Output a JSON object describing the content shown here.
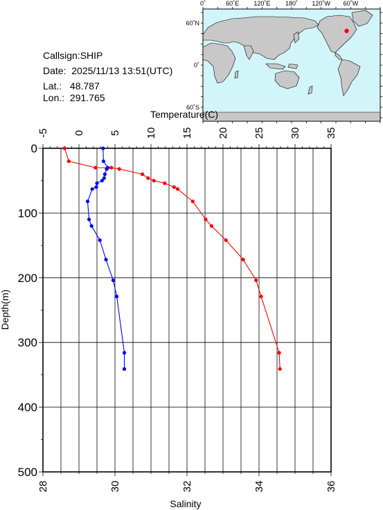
{
  "station": {
    "callsign": "Callsign:SHIP",
    "date": "Date:  2025/11/13 13:51(UTC)",
    "lat": "Lat.:   48.787",
    "lon": "Lon.:  291.765"
  },
  "map": {
    "lon_ticks": [
      "0˚",
      "60˚E",
      "120˚E",
      "180˚",
      "120˚W",
      "60˚W"
    ],
    "lat_ticks": [
      "60˚N",
      "0˚",
      "60˚S"
    ],
    "marker": {
      "lon": 291.765,
      "lat": 48.787
    },
    "colors": {
      "ocean": "#d2f5fa",
      "land": "#c8c8c8",
      "marker": "#ff0000"
    }
  },
  "chart_data": {
    "type": "line",
    "ylabel": "Depth(m)",
    "ylim": [
      500,
      0
    ],
    "yticks": [
      0,
      100,
      200,
      300,
      400,
      500
    ],
    "x_top": {
      "label": "Temperature(C)",
      "range": [
        -5,
        35
      ],
      "ticks": [
        -5,
        0,
        5,
        10,
        15,
        20,
        25,
        30,
        35
      ]
    },
    "x_bottom": {
      "label": "Salinity",
      "range": [
        28,
        36
      ],
      "ticks": [
        28,
        30,
        32,
        34,
        36
      ]
    },
    "grid": true,
    "series": [
      {
        "axis": "top",
        "color": "#ff0000",
        "points": [
          {
            "x": -2.0,
            "depth": 0
          },
          {
            "x": -1.4,
            "depth": 20
          },
          {
            "x": 2.3,
            "depth": 30
          },
          {
            "x": 4.5,
            "depth": 30
          },
          {
            "x": 5.6,
            "depth": 32
          },
          {
            "x": 8.8,
            "depth": 40
          },
          {
            "x": 9.6,
            "depth": 46
          },
          {
            "x": 10.4,
            "depth": 50
          },
          {
            "x": 11.9,
            "depth": 54
          },
          {
            "x": 13.2,
            "depth": 60
          },
          {
            "x": 13.7,
            "depth": 63
          },
          {
            "x": 15.8,
            "depth": 82
          },
          {
            "x": 17.6,
            "depth": 110
          },
          {
            "x": 18.4,
            "depth": 120
          },
          {
            "x": 20.4,
            "depth": 142
          },
          {
            "x": 22.8,
            "depth": 172
          },
          {
            "x": 24.6,
            "depth": 204
          },
          {
            "x": 25.3,
            "depth": 229
          },
          {
            "x": 27.8,
            "depth": 316
          },
          {
            "x": 27.9,
            "depth": 341
          }
        ]
      },
      {
        "axis": "bottom",
        "color": "#0000ff",
        "points": [
          {
            "x": 29.67,
            "depth": 0
          },
          {
            "x": 29.68,
            "depth": 20
          },
          {
            "x": 29.8,
            "depth": 30
          },
          {
            "x": 29.77,
            "depth": 32
          },
          {
            "x": 29.72,
            "depth": 40
          },
          {
            "x": 29.7,
            "depth": 46
          },
          {
            "x": 29.64,
            "depth": 50
          },
          {
            "x": 29.5,
            "depth": 54
          },
          {
            "x": 29.48,
            "depth": 60
          },
          {
            "x": 29.37,
            "depth": 63
          },
          {
            "x": 29.24,
            "depth": 82
          },
          {
            "x": 29.28,
            "depth": 110
          },
          {
            "x": 29.35,
            "depth": 120
          },
          {
            "x": 29.58,
            "depth": 142
          },
          {
            "x": 29.75,
            "depth": 172
          },
          {
            "x": 29.95,
            "depth": 204
          },
          {
            "x": 30.05,
            "depth": 229
          },
          {
            "x": 30.26,
            "depth": 316
          },
          {
            "x": 30.26,
            "depth": 341
          }
        ]
      }
    ]
  }
}
